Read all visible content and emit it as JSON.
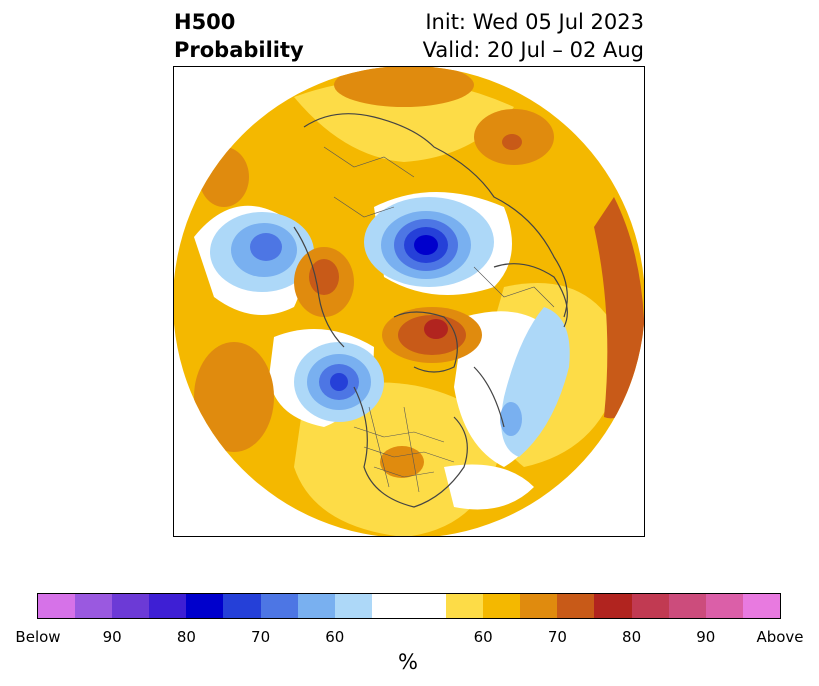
{
  "header": {
    "left_line1": "H500",
    "left_line2": "Probability",
    "right_line1": "Init: Wed 05 Jul 2023",
    "right_line2": "Valid: 20 Jul – 02 Aug"
  },
  "colorbar": {
    "colors": [
      "#d672e8",
      "#9a59e0",
      "#6c3ad6",
      "#3e1fd4",
      "#0000cc",
      "#2540d8",
      "#4d76e4",
      "#79b0f0",
      "#add8f8",
      "#ffffff",
      "#ffffff",
      "#fddc47",
      "#f4b800",
      "#e08b0e",
      "#c85a18",
      "#b1241f",
      "#c13a52",
      "#cc4c7c",
      "#db5fa8",
      "#e87ae0"
    ],
    "tick_labels": [
      "Below",
      "90",
      "80",
      "70",
      "60",
      "60",
      "70",
      "80",
      "90",
      "Above"
    ],
    "unit": "%"
  },
  "map": {
    "projection": "polar stereographic (north)",
    "features": [
      "coastlines",
      "country-borders",
      "us-state-borders"
    ]
  }
}
